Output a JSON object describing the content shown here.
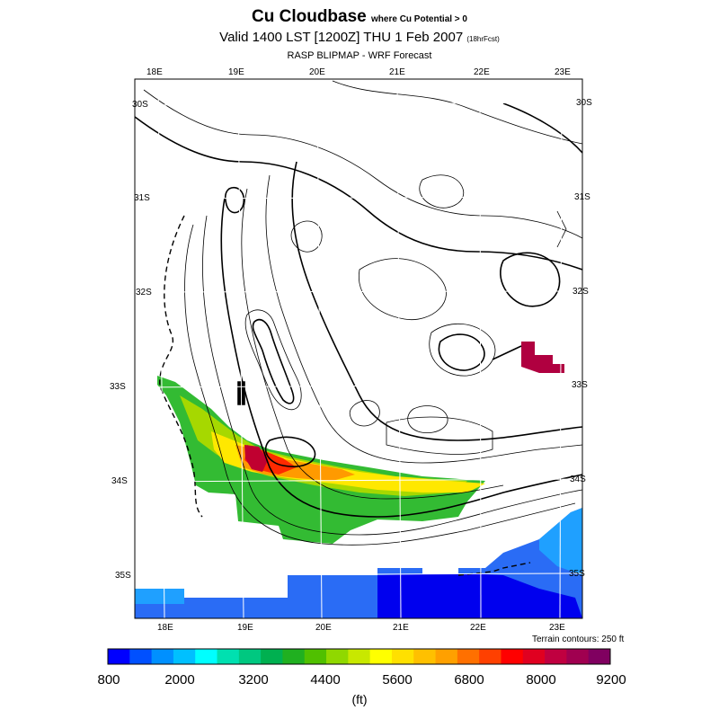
{
  "header": {
    "title": "Cu Cloudbase",
    "title_qualifier": "where Cu Potential > 0",
    "valid_time": "Valid 1400 LST [1200Z] THU 1 Feb 2007",
    "forecast_hours": "(18hrFcst)",
    "model": "RASP BLIPMAP - WRF Forecast"
  },
  "map": {
    "top_lon_labels": [
      "18E",
      "19E",
      "20E",
      "21E",
      "22E",
      "23E"
    ],
    "bottom_lon_labels": [
      "18E",
      "19E",
      "20E",
      "21E",
      "22E",
      "23E"
    ],
    "left_lat_labels": [
      "30S",
      "31S",
      "32S",
      "33S",
      "34S",
      "35S"
    ],
    "right_lat_labels": [
      "30S",
      "31S",
      "32S",
      "33S",
      "34S",
      "35S"
    ],
    "terrain_note": "Terrain contours: 250 ft"
  },
  "colorbar": {
    "colors": [
      "#0000ff",
      "#0050ff",
      "#0090ff",
      "#00c0ff",
      "#00ffff",
      "#00e0b0",
      "#00c880",
      "#00b050",
      "#20b020",
      "#50c000",
      "#90d800",
      "#c8e800",
      "#ffff00",
      "#ffe000",
      "#ffc000",
      "#ffa000",
      "#ff7000",
      "#ff4000",
      "#ff0000",
      "#e00020",
      "#c00040",
      "#a00050",
      "#800060"
    ],
    "labels": [
      "800",
      "2000",
      "3200",
      "4400",
      "5600",
      "6800",
      "8000",
      "9200"
    ],
    "units": "(ft)"
  }
}
